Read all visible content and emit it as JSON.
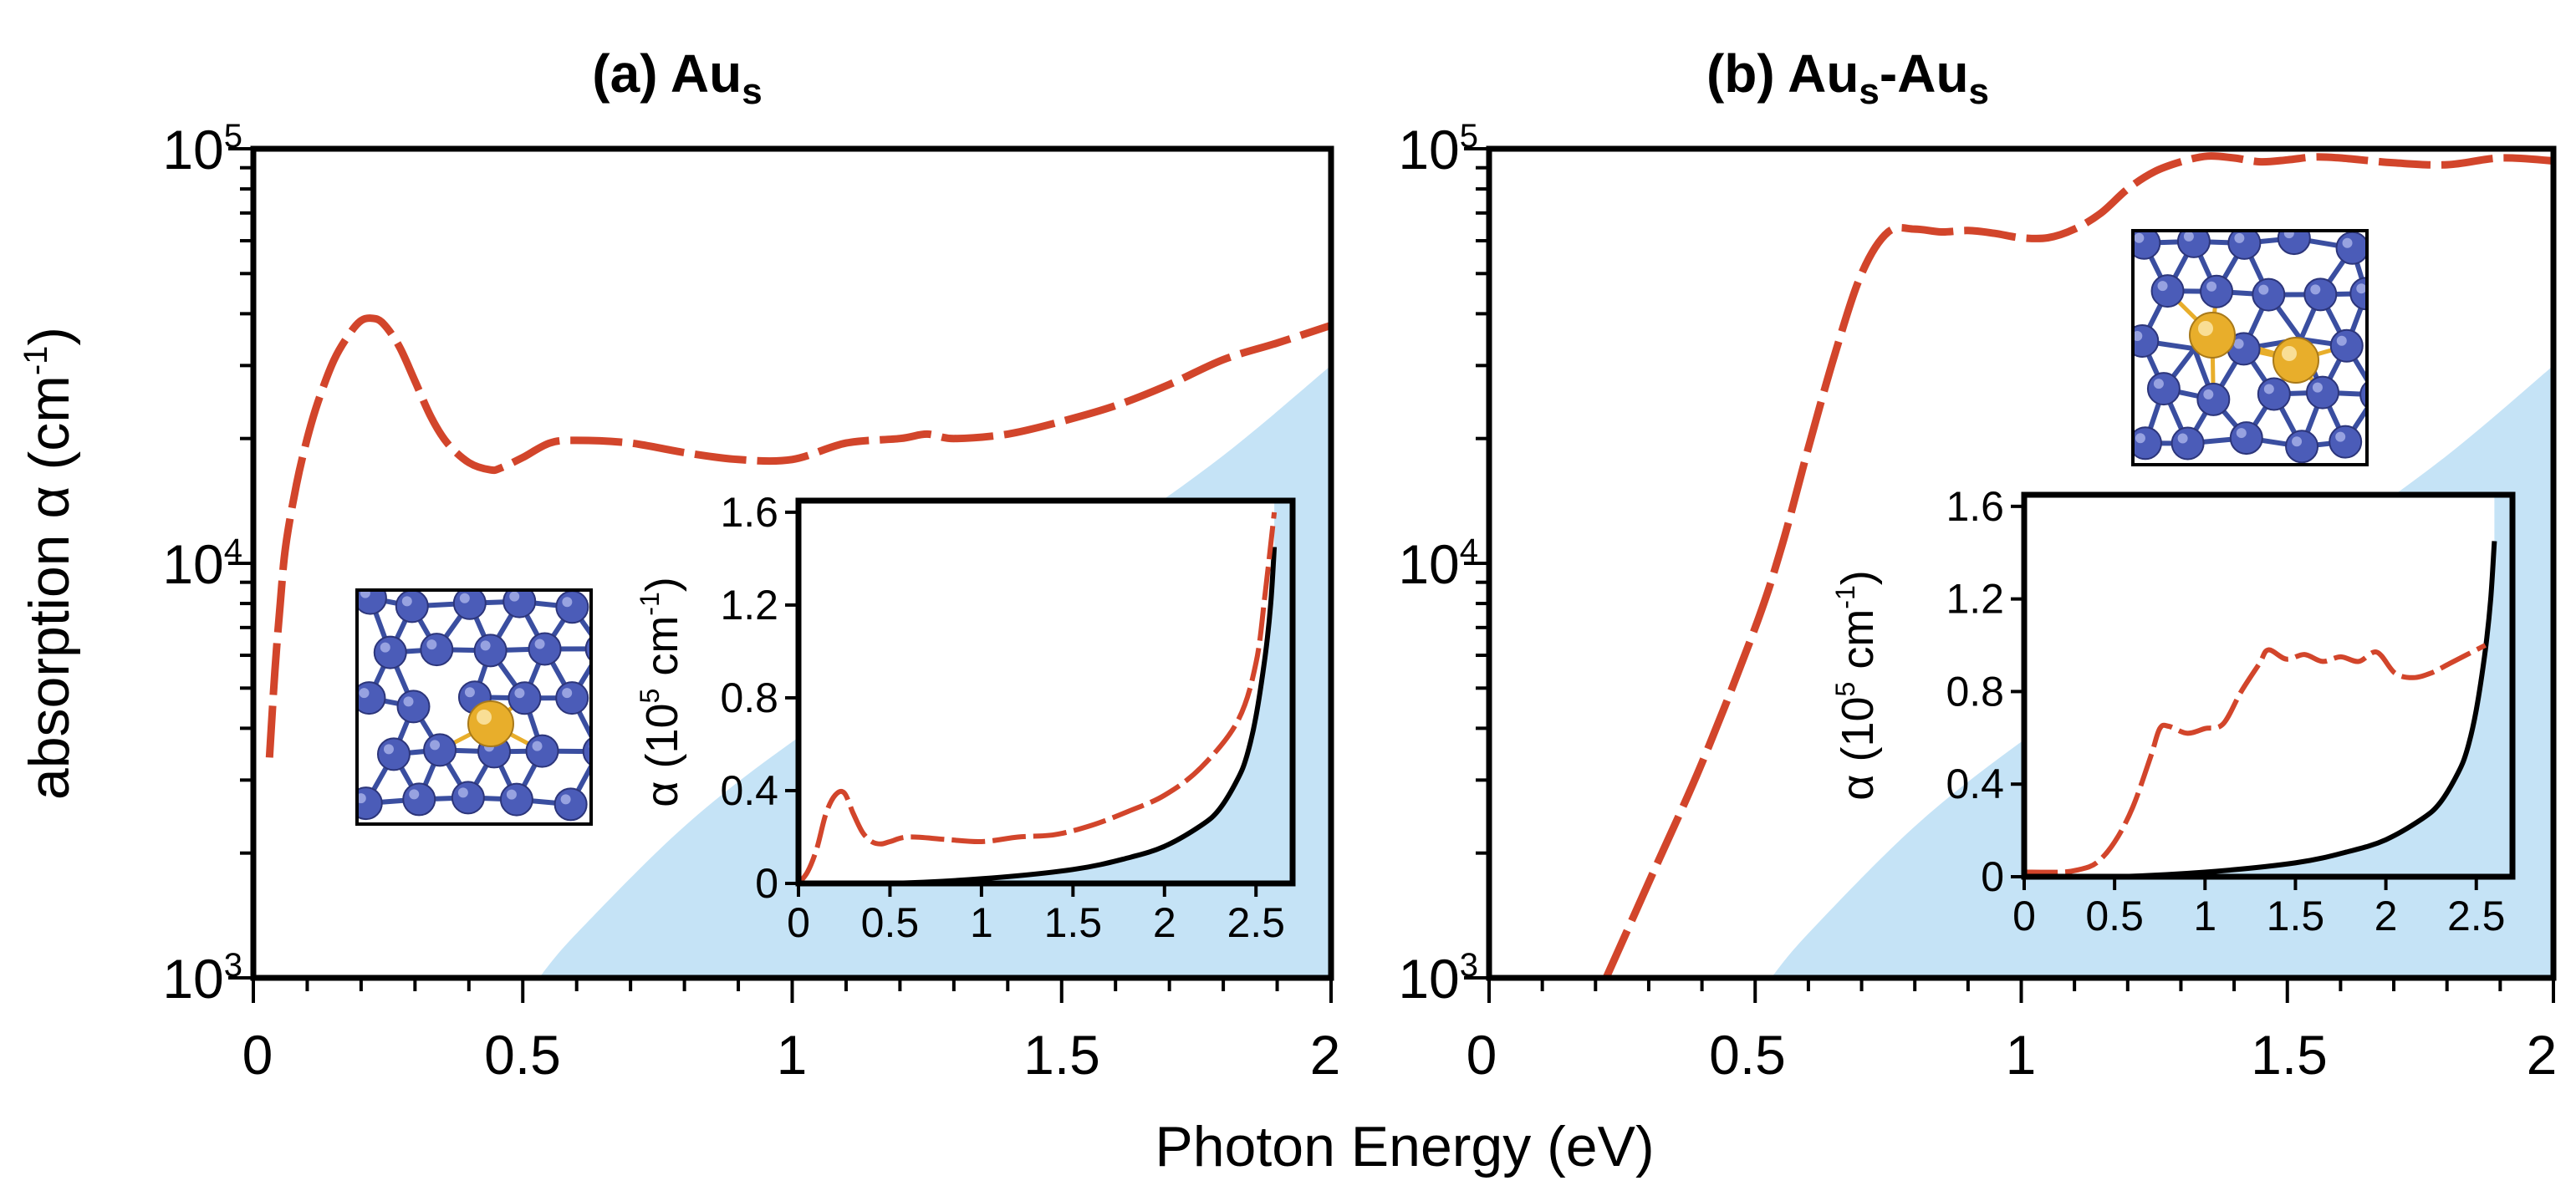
{
  "figure": {
    "xlabel": "Photon Energy (eV)",
    "ylabel_main": "absorption α (cm",
    "ylabel_main_sup": "-1",
    "ylabel_main_close": ")",
    "inset_ylabel_main": "α (10",
    "inset_ylabel_sup": "5",
    "inset_ylabel_unit": " cm",
    "inset_ylabel_unit_sup": "-1",
    "inset_ylabel_close": ")",
    "y_tick_base": "10",
    "colors": {
      "absorption_curve": "#d2452b",
      "reference_curve": "#000000",
      "shaded_region": "#c5e3f6",
      "structure_bonds": "#3a4ea0",
      "atom_host": "#4b5cb8",
      "atom_gold": "#e8ae2b"
    }
  },
  "chart_data": [
    {
      "id": "a",
      "type": "line",
      "title_prefix": "(a) Au",
      "title_sub": "s",
      "title_suffix": "",
      "xlim": [
        0,
        2
      ],
      "x_ticks": [
        "0",
        "0.5",
        "1",
        "1.5",
        "2"
      ],
      "yscale": "log",
      "ylim": [
        1000,
        100000
      ],
      "y_tick_exponents": [
        "3",
        "4",
        "5"
      ],
      "series": [
        {
          "name": "absorption",
          "style": "dashed",
          "x": [
            0.03,
            0.04,
            0.05,
            0.06,
            0.08,
            0.1,
            0.12,
            0.15,
            0.18,
            0.2,
            0.22,
            0.24,
            0.27,
            0.3,
            0.33,
            0.36,
            0.4,
            0.44,
            0.46,
            0.5,
            0.55,
            0.6,
            0.7,
            0.8,
            0.9,
            1.0,
            1.1,
            1.2,
            1.25,
            1.3,
            1.4,
            1.5,
            1.6,
            1.7,
            1.8,
            1.9,
            2.0
          ],
          "y": [
            3400,
            5500,
            8000,
            11000,
            15500,
            20000,
            24500,
            31000,
            36000,
            38500,
            39000,
            38000,
            33500,
            27500,
            22500,
            19500,
            17500,
            16800,
            17000,
            18000,
            19500,
            19800,
            19500,
            18500,
            17800,
            17800,
            19500,
            20000,
            20500,
            20000,
            20500,
            22000,
            24000,
            27000,
            31000,
            34000,
            37500
          ]
        }
      ],
      "shaded_region": {
        "x": [
          0.53,
          0.6,
          0.8,
          1.0,
          1.2,
          1.4,
          1.6,
          1.8,
          2.0
        ],
        "y_upper": [
          1000,
          1280,
          2320,
          3710,
          5480,
          8270,
          11900,
          18200,
          30000
        ]
      },
      "inset": {
        "xlim": [
          0,
          2.7
        ],
        "ylim": [
          0,
          1.65
        ],
        "x_ticks": [
          "0",
          "0.5",
          "1",
          "1.5",
          "2",
          "2.5"
        ],
        "y_ticks": [
          "0",
          "0.4",
          "0.8",
          "1.2",
          "1.6"
        ],
        "series": [
          {
            "name": "absorption",
            "style": "dashed",
            "x": [
              0,
              0.05,
              0.1,
              0.15,
              0.2,
              0.25,
              0.3,
              0.35,
              0.4,
              0.45,
              0.5,
              0.6,
              0.8,
              1.0,
              1.2,
              1.4,
              1.6,
              1.8,
              2.0,
              2.2,
              2.4,
              2.5,
              2.55,
              2.6
            ],
            "y": [
              0,
              0.05,
              0.15,
              0.3,
              0.38,
              0.39,
              0.3,
              0.22,
              0.18,
              0.17,
              0.18,
              0.2,
              0.19,
              0.18,
              0.2,
              0.21,
              0.25,
              0.31,
              0.38,
              0.5,
              0.7,
              0.95,
              1.25,
              1.6
            ]
          },
          {
            "name": "reference",
            "style": "solid",
            "x": [
              0,
              0.5,
              1.0,
              1.5,
              1.8,
              2.0,
              2.2,
              2.3,
              2.4,
              2.45,
              2.5,
              2.55,
              2.58,
              2.6
            ],
            "y": [
              0,
              0.0,
              0.02,
              0.06,
              0.11,
              0.16,
              0.25,
              0.32,
              0.45,
              0.55,
              0.72,
              0.98,
              1.2,
              1.45
            ]
          }
        ]
      }
    },
    {
      "id": "b",
      "type": "line",
      "title_prefix": "(b) Au",
      "title_sub": "s",
      "title_suffix": "-Au",
      "title_sub2": "s",
      "xlim": [
        0,
        2
      ],
      "x_ticks": [
        "0",
        "0.5",
        "1",
        "1.5",
        "2"
      ],
      "yscale": "log",
      "ylim": [
        1000,
        100000
      ],
      "y_tick_exponents": [
        "3",
        "4",
        "5"
      ],
      "series": [
        {
          "name": "absorption",
          "style": "dashed",
          "x": [
            0.22,
            0.3,
            0.4,
            0.5,
            0.55,
            0.6,
            0.65,
            0.7,
            0.75,
            0.8,
            0.85,
            0.9,
            0.95,
            1.0,
            1.05,
            1.1,
            1.15,
            1.2,
            1.25,
            1.3,
            1.35,
            1.4,
            1.45,
            1.5,
            1.55,
            1.6,
            1.7,
            1.8,
            1.9,
            2.0
          ],
          "y": [
            1000,
            1700,
            3300,
            7000,
            11000,
            19000,
            32000,
            50000,
            63000,
            64000,
            63000,
            63500,
            62500,
            61000,
            61000,
            64000,
            70000,
            80000,
            88000,
            93000,
            96000,
            95000,
            93000,
            94000,
            95500,
            95000,
            92500,
            91500,
            95000,
            93500
          ]
        }
      ],
      "shaded_region": {
        "x": [
          0.53,
          0.6,
          0.8,
          1.0,
          1.2,
          1.4,
          1.6,
          1.8,
          2.0
        ],
        "y_upper": [
          1000,
          1280,
          2320,
          3710,
          5480,
          8270,
          11900,
          18200,
          30000
        ]
      },
      "inset": {
        "xlim": [
          0,
          2.7
        ],
        "ylim": [
          0,
          1.65
        ],
        "x_ticks": [
          "0",
          "0.5",
          "1",
          "1.5",
          "2",
          "2.5"
        ],
        "y_ticks": [
          "0",
          "0.4",
          "0.8",
          "1.2",
          "1.6"
        ],
        "series": [
          {
            "name": "absorption",
            "style": "dashed",
            "x": [
              0,
              0.2,
              0.3,
              0.4,
              0.5,
              0.6,
              0.7,
              0.75,
              0.8,
              0.9,
              1.0,
              1.1,
              1.2,
              1.3,
              1.35,
              1.45,
              1.55,
              1.65,
              1.75,
              1.85,
              1.95,
              2.05,
              2.15,
              2.25,
              2.35,
              2.45,
              2.55
            ],
            "y": [
              0.02,
              0.02,
              0.03,
              0.06,
              0.15,
              0.3,
              0.52,
              0.64,
              0.65,
              0.62,
              0.64,
              0.66,
              0.8,
              0.92,
              0.98,
              0.94,
              0.96,
              0.93,
              0.95,
              0.93,
              0.97,
              0.88,
              0.86,
              0.88,
              0.92,
              0.96,
              1.0
            ]
          },
          {
            "name": "reference",
            "style": "solid",
            "x": [
              0,
              0.5,
              1.0,
              1.5,
              1.8,
              2.0,
              2.2,
              2.3,
              2.4,
              2.45,
              2.5,
              2.55,
              2.58,
              2.6
            ],
            "y": [
              0,
              0.0,
              0.02,
              0.06,
              0.11,
              0.16,
              0.25,
              0.32,
              0.45,
              0.55,
              0.72,
              0.98,
              1.2,
              1.45
            ]
          }
        ]
      }
    }
  ]
}
